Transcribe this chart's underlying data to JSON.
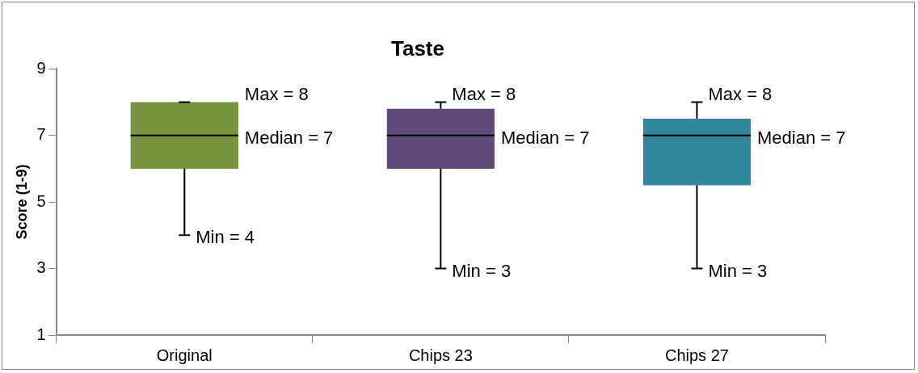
{
  "chart_data": {
    "type": "box",
    "title": "Taste",
    "ylabel": "Score (1-9)",
    "categories": [
      "Original",
      "Chips 23",
      "Chips 27"
    ],
    "colors": [
      "#77933c",
      "#604a7b",
      "#31859c"
    ],
    "boxes": [
      {
        "low": 4,
        "q1": 6,
        "median": 7,
        "q3": 8,
        "high": 8
      },
      {
        "low": 3,
        "q1": 6,
        "median": 7,
        "q3": 7.8,
        "high": 8
      },
      {
        "low": 3,
        "q1": 5.5,
        "median": 7,
        "q3": 7.5,
        "high": 8
      }
    ],
    "ylim": [
      1,
      9
    ],
    "yticks": [
      1,
      3,
      5,
      7,
      9
    ],
    "grid": false,
    "legend": false,
    "annotations": [
      "Max = 8",
      "Median = 7",
      "Min = 4",
      "Max = 8",
      "Median = 7",
      "Min = 3",
      "Max = 8",
      "Median = 7",
      "Min = 3"
    ]
  }
}
